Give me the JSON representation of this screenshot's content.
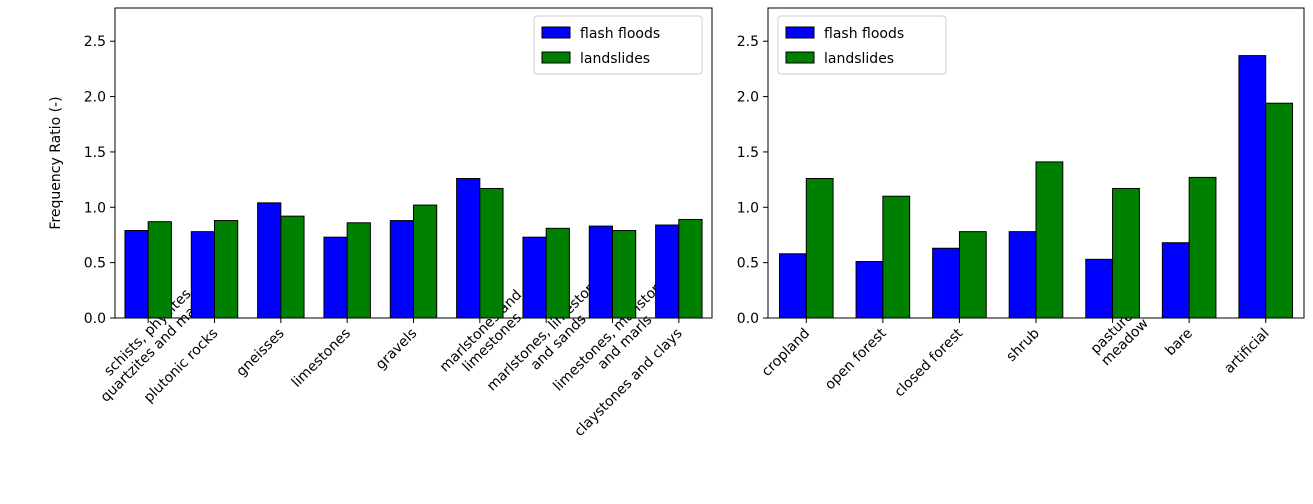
{
  "chart_data": [
    {
      "type": "bar",
      "y_label": "Frequency Ratio (-)",
      "categories": [
        "schists, phyllites,\nquartzites and marbles",
        "plutonic rocks",
        "gneisses",
        "limestones",
        "gravels",
        "marlstones and\nlimestones",
        "marlstones, limestones\nand sands",
        "limestones, marlstones\nand marls",
        "claystones and clays"
      ],
      "series": [
        {
          "name": "flash floods",
          "color": "#0000ff",
          "values": [
            0.79,
            0.78,
            1.04,
            0.73,
            0.88,
            1.26,
            0.73,
            0.83,
            0.84
          ]
        },
        {
          "name": "landslides",
          "color": "#008000",
          "values": [
            0.87,
            0.88,
            0.92,
            0.86,
            1.02,
            1.17,
            0.81,
            0.79,
            0.89
          ]
        }
      ],
      "ylim": [
        0,
        2.8
      ],
      "yticks": [
        {
          "value": 0,
          "label": "0.0"
        },
        0.5,
        {
          "value": 1,
          "label": "1.0"
        },
        1.5,
        {
          "value": 2,
          "label": "2.0"
        },
        2.5
      ],
      "legend": "upper right"
    },
    {
      "type": "bar",
      "categories": [
        "cropland",
        "open forest",
        "closed forest",
        "shrub",
        "pasture/\nmeadow",
        "bare",
        "artificial"
      ],
      "series": [
        {
          "name": "flash floods",
          "color": "#0000ff",
          "values": [
            0.58,
            0.51,
            0.63,
            0.78,
            0.53,
            0.68,
            2.37
          ]
        },
        {
          "name": "landslides",
          "color": "#008000",
          "values": [
            1.26,
            1.1,
            0.78,
            1.41,
            1.17,
            1.27,
            1.94
          ]
        }
      ],
      "ylim": [
        0,
        2.8
      ],
      "yticks": [
        {
          "value": 0,
          "label": "0.0"
        },
        0.5,
        {
          "value": 1,
          "label": "1.0"
        },
        1.5,
        {
          "value": 2,
          "label": "2.0"
        },
        2.5
      ],
      "legend": "upper left"
    }
  ]
}
